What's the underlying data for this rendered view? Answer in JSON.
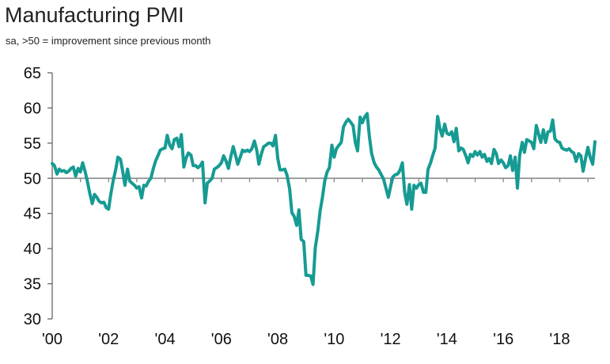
{
  "chart_data": {
    "type": "line",
    "title": "Manufacturing PMI",
    "subtitle": "sa, >50 = improvement since previous month",
    "xlabel": "",
    "ylabel": "",
    "ylim": [
      30,
      65
    ],
    "xlim": [
      2000.0,
      2019.25
    ],
    "yticks": [
      65,
      60,
      55,
      50,
      45,
      40,
      35,
      30
    ],
    "xticks": [
      {
        "value": 2000,
        "label": "'00"
      },
      {
        "value": 2002,
        "label": "'02"
      },
      {
        "value": 2004,
        "label": "'04"
      },
      {
        "value": 2006,
        "label": "'06"
      },
      {
        "value": 2008,
        "label": "'08"
      },
      {
        "value": 2010,
        "label": "'10"
      },
      {
        "value": 2012,
        "label": "'12"
      },
      {
        "value": 2014,
        "label": "'14"
      },
      {
        "value": 2016,
        "label": "'16"
      },
      {
        "value": 2018,
        "label": "'18"
      }
    ],
    "reference_line": 50,
    "grid": false,
    "line_color": "#169b93",
    "series": [
      {
        "x": [
          2000.0,
          2000.08,
          2000.17,
          2000.25,
          2000.33,
          2000.42,
          2000.5,
          2000.58,
          2000.67,
          2000.75,
          2000.83,
          2000.92,
          2001.0,
          2001.08,
          2001.17,
          2001.25,
          2001.33,
          2001.42,
          2001.5,
          2001.58,
          2001.67,
          2001.75,
          2001.83,
          2001.92,
          2002.0,
          2002.08,
          2002.17,
          2002.25,
          2002.33,
          2002.42,
          2002.5,
          2002.58,
          2002.67,
          2002.75,
          2002.83,
          2002.92,
          2003.0,
          2003.08,
          2003.17,
          2003.25,
          2003.33,
          2003.42,
          2003.5,
          2003.58,
          2003.67,
          2003.75,
          2003.83,
          2003.92,
          2004.0,
          2004.08,
          2004.17,
          2004.25,
          2004.33,
          2004.42,
          2004.5,
          2004.58,
          2004.67,
          2004.75,
          2004.83,
          2004.92,
          2005.0,
          2005.08,
          2005.17,
          2005.25,
          2005.33,
          2005.42,
          2005.5,
          2005.58,
          2005.67,
          2005.75,
          2005.83,
          2005.92,
          2006.0,
          2006.08,
          2006.17,
          2006.25,
          2006.33,
          2006.42,
          2006.5,
          2006.58,
          2006.67,
          2006.75,
          2006.83,
          2006.92,
          2007.0,
          2007.08,
          2007.17,
          2007.25,
          2007.33,
          2007.42,
          2007.5,
          2007.58,
          2007.67,
          2007.75,
          2007.83,
          2007.92,
          2008.0,
          2008.08,
          2008.17,
          2008.25,
          2008.33,
          2008.42,
          2008.5,
          2008.58,
          2008.67,
          2008.75,
          2008.83,
          2008.92,
          2009.0,
          2009.08,
          2009.17,
          2009.25,
          2009.33,
          2009.42,
          2009.5,
          2009.58,
          2009.67,
          2009.75,
          2009.83,
          2009.92,
          2010.0,
          2010.08,
          2010.17,
          2010.25,
          2010.33,
          2010.42,
          2010.5,
          2010.58,
          2010.67,
          2010.75,
          2010.83,
          2010.92,
          2011.0,
          2011.08,
          2011.17,
          2011.25,
          2011.33,
          2011.42,
          2011.5,
          2011.58,
          2011.67,
          2011.75,
          2011.83,
          2011.92,
          2012.0,
          2012.08,
          2012.17,
          2012.25,
          2012.33,
          2012.42,
          2012.5,
          2012.58,
          2012.67,
          2012.75,
          2012.83,
          2012.92,
          2013.0,
          2013.08,
          2013.17,
          2013.25,
          2013.33,
          2013.42,
          2013.5,
          2013.58,
          2013.67,
          2013.75,
          2013.83,
          2013.92,
          2014.0,
          2014.08,
          2014.17,
          2014.25,
          2014.33,
          2014.42,
          2014.5,
          2014.58,
          2014.67,
          2014.75,
          2014.83,
          2014.92,
          2015.0,
          2015.08,
          2015.17,
          2015.25,
          2015.33,
          2015.42,
          2015.5,
          2015.58,
          2015.67,
          2015.75,
          2015.83,
          2015.92,
          2016.0,
          2016.08,
          2016.17,
          2016.25,
          2016.33,
          2016.42,
          2016.5,
          2016.58,
          2016.67,
          2016.75,
          2016.83,
          2016.92,
          2017.0,
          2017.08,
          2017.17,
          2017.25,
          2017.33,
          2017.42,
          2017.5,
          2017.58,
          2017.67,
          2017.75,
          2017.83,
          2017.92,
          2018.0,
          2018.08,
          2018.17,
          2018.25,
          2018.33,
          2018.42,
          2018.5,
          2018.58,
          2018.67,
          2018.75,
          2018.83,
          2018.92,
          2019.0,
          2019.08,
          2019.17,
          2019.25
        ],
        "values": [
          52.1,
          51.8,
          50.6,
          51.3,
          51.0,
          51.1,
          50.8,
          51.0,
          51.4,
          51.6,
          50.3,
          51.4,
          50.9,
          52.2,
          50.9,
          49.5,
          47.9,
          46.4,
          47.7,
          47.3,
          46.7,
          46.5,
          46.6,
          45.8,
          45.6,
          47.8,
          49.8,
          51.2,
          53.0,
          52.7,
          51.0,
          49.0,
          51.3,
          49.6,
          49.3,
          49.0,
          48.6,
          48.8,
          47.2,
          49.0,
          48.9,
          49.6,
          50.0,
          51.3,
          52.5,
          53.2,
          54.0,
          54.2,
          54.3,
          56.1,
          54.7,
          54.2,
          55.5,
          55.7,
          54.5,
          56.2,
          51.6,
          52.9,
          53.6,
          53.3,
          51.8,
          51.8,
          51.5,
          51.8,
          52.3,
          46.5,
          49.3,
          49.6,
          50.0,
          51.3,
          51.5,
          51.8,
          52.2,
          53.2,
          52.4,
          51.4,
          53.0,
          54.5,
          53.3,
          52.0,
          53.0,
          54.0,
          53.8,
          54.0,
          53.8,
          54.2,
          55.3,
          54.1,
          52.0,
          53.5,
          54.5,
          54.7,
          55.0,
          55.0,
          54.6,
          56.1,
          52.8,
          51.2,
          51.2,
          51.3,
          50.4,
          48.5,
          45.1,
          44.6,
          43.3,
          45.5,
          41.3,
          41.0,
          36.2,
          36.2,
          36.1,
          34.9,
          40.1,
          42.5,
          45.3,
          47.2,
          49.7,
          50.9,
          51.5,
          54.7,
          53.0,
          54.2,
          54.7,
          55.1,
          57.3,
          58.0,
          58.4,
          58.0,
          57.5,
          55.1,
          53.9,
          58.7,
          57.9,
          58.7,
          59.2,
          55.9,
          53.5,
          52.2,
          51.6,
          51.2,
          50.5,
          49.9,
          48.7,
          47.3,
          48.8,
          50.2,
          50.5,
          50.6,
          51.1,
          52.2,
          48.0,
          46.3,
          49.1,
          45.6,
          49.0,
          48.6,
          49.1,
          49.3,
          48.0,
          48.0,
          51.3,
          52.2,
          53.3,
          54.3,
          58.8,
          57.1,
          56.0,
          57.7,
          56.4,
          56.2,
          56.6,
          55.2,
          57.1,
          53.9,
          54.3,
          54.1,
          53.2,
          52.2,
          53.4,
          53.1,
          53.8,
          53.3,
          53.8,
          53.0,
          53.4,
          52.4,
          52.8,
          52.1,
          54.1,
          53.5,
          52.1,
          52.6,
          52.2,
          51.5,
          51.8,
          53.2,
          51.1,
          53.0,
          48.6,
          53.3,
          55.1,
          53.7,
          55.5,
          55.3,
          55.1,
          54.2,
          57.5,
          56.3,
          55.1,
          56.9,
          55.1,
          56.6,
          56.7,
          58.3,
          55.6,
          55.2,
          55.1,
          54.3,
          54.1,
          54.0,
          54.2,
          53.8,
          53.6,
          52.4,
          53.5,
          53.2,
          51.0,
          52.9,
          54.4,
          53.0,
          52.0,
          55.2
        ]
      }
    ]
  }
}
